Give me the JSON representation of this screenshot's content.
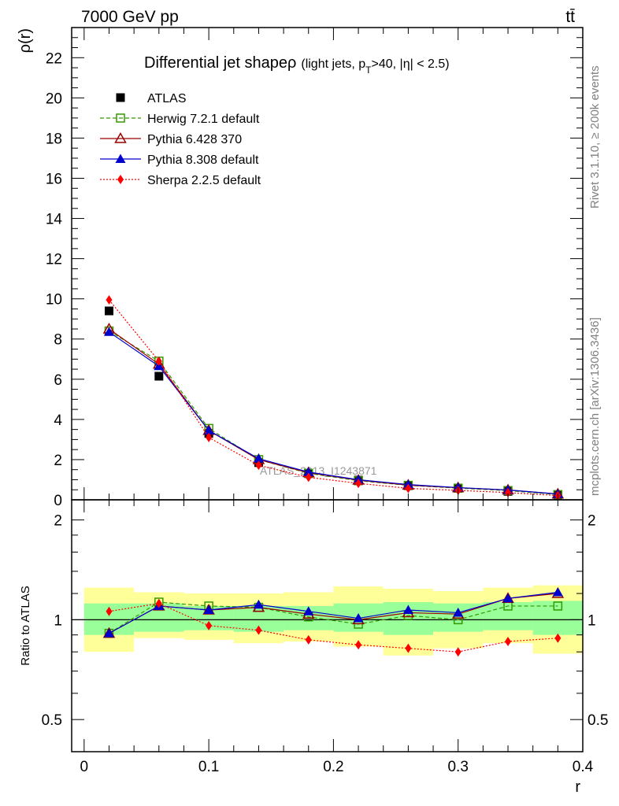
{
  "header": {
    "beam": "7000 GeV pp",
    "process": "tt̄",
    "title": "Differential jet shape ρ (light jets, pT>40, |η| < 2.5)",
    "title_main": "Differential jet shape",
    "title_rho": "ρ",
    "title_paren_a": "(light jets, p",
    "title_sub": "T",
    "title_paren_b": ">40, |η| < 2.5)",
    "side_rivet": "Rivet 3.1.10, ≥ 200k events",
    "side_mcplots": "mcplots.cern.ch [arXiv:1306.3436]",
    "watermark": "ATLAS_2013_I1243871"
  },
  "chart_data": [
    {
      "type": "scatter",
      "title": "Differential jet shape ρ (light jets, pT>40, |η| < 2.5)",
      "xlabel": "",
      "ylabel": "ρ(r)",
      "xlim": [
        -0.01,
        0.4
      ],
      "ylim": [
        0,
        23.5
      ],
      "yticks": [
        0,
        2,
        4,
        6,
        8,
        10,
        12,
        14,
        16,
        18,
        20,
        22
      ],
      "yticklabels": [
        "0",
        "2",
        "4",
        "6",
        "8",
        "10",
        "12",
        "14",
        "16",
        "18",
        "20",
        "22"
      ],
      "grid": false,
      "legend": "top-left",
      "x": [
        0.02,
        0.06,
        0.1,
        0.14,
        0.18,
        0.22,
        0.26,
        0.3,
        0.34,
        0.38
      ],
      "series": [
        {
          "name": "ATLAS",
          "color": "#000000",
          "marker": "square-filled",
          "line": "none",
          "values": [
            9.4,
            6.15,
            3.3,
            1.85,
            1.3,
            0.98,
            0.7,
            0.58,
            0.42,
            0.24
          ]
        },
        {
          "name": "Herwig 7.2.1 default",
          "color": "#339900",
          "marker": "square-open",
          "line": "dashed",
          "values": [
            8.4,
            6.9,
            3.55,
            2.0,
            1.32,
            0.95,
            0.72,
            0.58,
            0.46,
            0.26
          ]
        },
        {
          "name": "Pythia 6.428 370",
          "color": "#990000",
          "marker": "triangle-open",
          "line": "solid",
          "values": [
            8.5,
            6.75,
            3.45,
            2.0,
            1.35,
            0.98,
            0.73,
            0.6,
            0.49,
            0.29
          ]
        },
        {
          "name": "Pythia 8.308 default",
          "color": "#0000cc",
          "marker": "triangle-filled",
          "line": "solid",
          "values": [
            8.35,
            6.65,
            3.45,
            2.05,
            1.38,
            1.0,
            0.76,
            0.61,
            0.49,
            0.29
          ]
        },
        {
          "name": "Sherpa 2.2.5 default",
          "color": "#ff0000",
          "marker": "diamond-filled",
          "line": "dotted",
          "values": [
            9.95,
            6.9,
            3.1,
            1.72,
            1.12,
            0.82,
            0.57,
            0.47,
            0.36,
            0.21
          ]
        }
      ]
    },
    {
      "type": "scatter",
      "xlabel": "r",
      "ylabel": "Ratio to ATLAS",
      "xlim": [
        -0.01,
        0.4
      ],
      "ylim": [
        0.4,
        2.3
      ],
      "yscale": "log",
      "yticks": [
        0.5,
        1,
        2
      ],
      "yticklabels": [
        "0.5",
        "1",
        "2"
      ],
      "xticks": [
        0,
        0.1,
        0.2,
        0.3,
        0.4
      ],
      "xticklabels": [
        "0",
        "0.1",
        "0.2",
        "0.3",
        "0.4"
      ],
      "reference_line": 1,
      "grid": false,
      "bin_edges": [
        0,
        0.04,
        0.08,
        0.12,
        0.16,
        0.2,
        0.24,
        0.28,
        0.32,
        0.36,
        0.4
      ],
      "band_inner": {
        "color": "#99ff99",
        "lo": [
          0.9,
          0.92,
          0.93,
          0.92,
          0.93,
          0.92,
          0.9,
          0.92,
          0.93,
          0.9
        ],
        "hi": [
          1.12,
          1.12,
          1.1,
          1.1,
          1.1,
          1.12,
          1.13,
          1.12,
          1.13,
          1.14
        ]
      },
      "band_outer": {
        "color": "#ffff99",
        "lo": [
          0.8,
          0.88,
          0.87,
          0.85,
          0.86,
          0.83,
          0.78,
          0.82,
          0.85,
          0.79
        ],
        "hi": [
          1.25,
          1.21,
          1.2,
          1.2,
          1.21,
          1.26,
          1.24,
          1.22,
          1.25,
          1.27
        ]
      },
      "x": [
        0.02,
        0.06,
        0.1,
        0.14,
        0.18,
        0.22,
        0.26,
        0.3,
        0.34,
        0.38
      ],
      "series": [
        {
          "name": "Herwig 7.2.1 default",
          "color": "#339900",
          "marker": "square-open",
          "line": "dashed",
          "values": [
            0.91,
            1.13,
            1.1,
            1.09,
            1.02,
            0.97,
            1.03,
            1.0,
            1.1,
            1.1
          ]
        },
        {
          "name": "Pythia 6.428 370",
          "color": "#990000",
          "marker": "triangle-open",
          "line": "solid",
          "values": [
            0.91,
            1.1,
            1.07,
            1.09,
            1.04,
            1.0,
            1.05,
            1.04,
            1.16,
            1.2
          ]
        },
        {
          "name": "Pythia 8.308 default",
          "color": "#0000cc",
          "marker": "triangle-filled",
          "line": "solid",
          "values": [
            0.91,
            1.1,
            1.07,
            1.11,
            1.06,
            1.01,
            1.07,
            1.05,
            1.16,
            1.21
          ]
        },
        {
          "name": "Sherpa 2.2.5 default",
          "color": "#ff0000",
          "marker": "diamond-filled",
          "line": "dotted",
          "values": [
            1.06,
            1.12,
            0.96,
            0.93,
            0.87,
            0.84,
            0.82,
            0.8,
            0.86,
            0.88
          ]
        }
      ]
    }
  ]
}
